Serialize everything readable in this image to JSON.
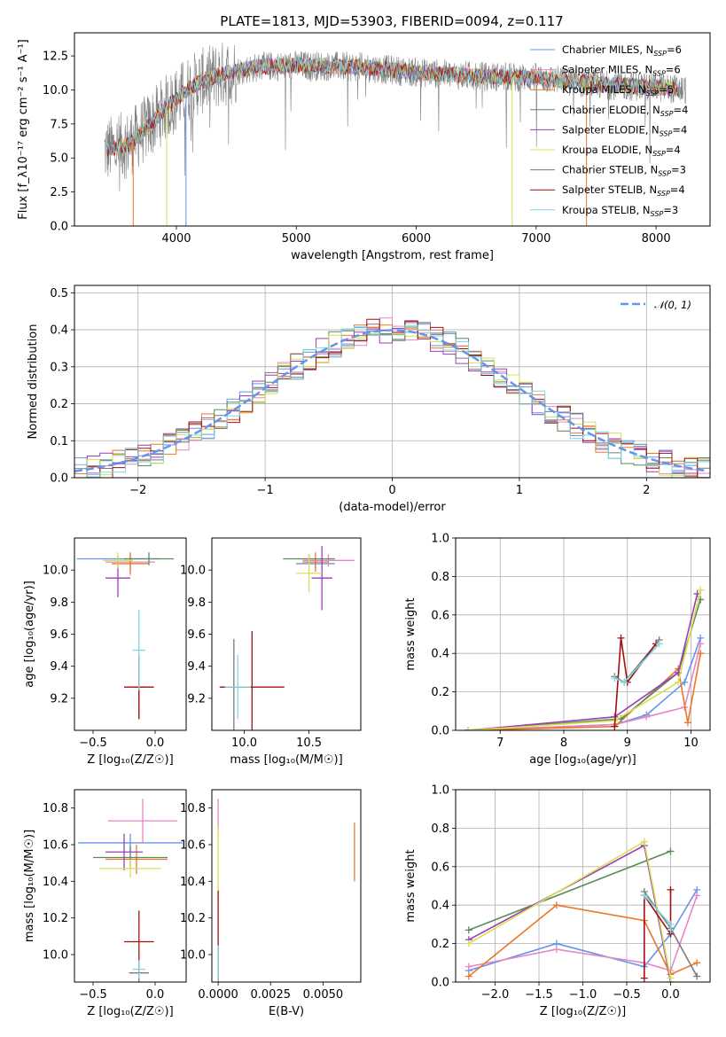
{
  "colors": {
    "chabrier_miles": "#6495ed",
    "salpeter_miles": "#e687c4",
    "kroupa_miles": "#e8782a",
    "chabrier_elodie": "#5a8a5a",
    "salpeter_elodie": "#9b3fb5",
    "kroupa_elodie": "#d8e050",
    "chabrier_stelib": "#7a7a7a",
    "salpeter_stelib": "#a01010",
    "kroupa_stelib": "#7fd6e0"
  },
  "chart_data": [
    {
      "id": "spectrum",
      "type": "line",
      "title": "PLATE=1813, MJD=53903, FIBERID=0094, z=0.117",
      "xlabel": "wavelength [Angstrom, rest frame]",
      "ylabel": "Flux [f_λ10⁻¹⁷ erg cm⁻² s⁻¹ A⁻¹]",
      "xlim": [
        3150,
        8450
      ],
      "ylim": [
        0,
        14.2
      ],
      "xticks": [
        "4000",
        "5000",
        "6000",
        "7000",
        "8000"
      ],
      "yticks": [
        "0.0",
        "2.5",
        "5.0",
        "7.5",
        "10.0",
        "12.5"
      ],
      "grid": false,
      "legend_position": "top-right",
      "legend": [
        "Chabrier MILES, N_SSP=6",
        "Salpeter MILES, N_SSP=6",
        "Kroupa MILES, N_SSP=5",
        "Chabrier ELODIE, N_SSP=4",
        "Salpeter ELODIE, N_SSP=4",
        "Kroupa ELODIE, N_SSP=4",
        "Chabrier STELIB, N_SSP=3",
        "Salpeter STELIB, N_SSP=4",
        "Kroupa STELIB, N_SSP=3"
      ],
      "series_wavelength": [
        3400,
        3500,
        3600,
        3700,
        3800,
        3900,
        4000,
        4100,
        4200,
        4300,
        4400,
        4500,
        4700,
        5000,
        5500,
        6000,
        6500,
        7000,
        7500,
        8000,
        8250
      ],
      "series_flux": [
        5.5,
        5.8,
        6.0,
        6.8,
        7.6,
        8.6,
        9.3,
        10.1,
        10.6,
        10.9,
        11.2,
        11.4,
        11.7,
        11.8,
        11.7,
        11.3,
        11.0,
        10.9,
        10.4,
        10.2,
        10.0
      ]
    },
    {
      "id": "residuals",
      "type": "area",
      "xlabel": "(data-model)/error",
      "ylabel": "Normed distribution",
      "xlim": [
        -2.5,
        2.5
      ],
      "ylim": [
        0,
        0.52
      ],
      "xticks": [
        "−2",
        "−1",
        "0",
        "1",
        "2"
      ],
      "yticks": [
        "0.0",
        "0.1",
        "0.2",
        "0.3",
        "0.4",
        "0.5"
      ],
      "grid": true,
      "legend_position": "top-right",
      "legend": [
        "𝒩(0, 1)"
      ],
      "bin_width": 0.1
    },
    {
      "id": "age_vs_Z",
      "type": "scatter",
      "xlabel": "Z [log₁₀(Z/Z☉)]",
      "ylabel": "age  [log₁₀(age/yr)]",
      "xlim": [
        -0.65,
        0.25
      ],
      "ylim": [
        9.0,
        10.2
      ],
      "xticks": [
        "−0.5",
        "0.0"
      ],
      "yticks": [
        "9.2",
        "9.4",
        "9.6",
        "9.8",
        "10.0"
      ],
      "points": [
        {
          "s": "chabrier_miles",
          "x": -0.3,
          "y": 10.07,
          "xerr": 0.33,
          "yerr": 0.02
        },
        {
          "s": "salpeter_miles",
          "x": -0.2,
          "y": 10.05,
          "xerr": 0.2,
          "yerr": 0.05
        },
        {
          "s": "kroupa_miles",
          "x": -0.2,
          "y": 10.04,
          "xerr": 0.15,
          "yerr": 0.07
        },
        {
          "s": "chabrier_elodie",
          "x": -0.05,
          "y": 10.07,
          "xerr": 0.2,
          "yerr": 0.04
        },
        {
          "s": "salpeter_elodie",
          "x": -0.3,
          "y": 9.95,
          "xerr": 0.1,
          "yerr": 0.12
        },
        {
          "s": "kroupa_elodie",
          "x": -0.3,
          "y": 10.06,
          "xerr": 0.12,
          "yerr": 0.05
        },
        {
          "s": "chabrier_stelib",
          "x": -0.13,
          "y": 9.27,
          "xerr": 0.05,
          "yerr": 0.2
        },
        {
          "s": "salpeter_stelib",
          "x": -0.13,
          "y": 9.27,
          "xerr": 0.12,
          "yerr": 0.2
        },
        {
          "s": "kroupa_stelib",
          "x": -0.13,
          "y": 9.5,
          "xerr": 0.05,
          "yerr": 0.25
        }
      ]
    },
    {
      "id": "age_vs_mass",
      "type": "scatter",
      "xlabel": "mass [log₁₀(M/M☉)]",
      "ylabel": "",
      "xlim": [
        9.75,
        10.9
      ],
      "ylim": [
        9.0,
        10.2
      ],
      "xticks": [
        "10.0",
        "10.5"
      ],
      "yticks": [
        "9.2",
        "9.4",
        "9.6",
        "9.8",
        "10.0"
      ],
      "points": [
        {
          "s": "chabrier_miles",
          "x": 10.55,
          "y": 10.04,
          "xerr": 0.15,
          "yerr": 0.03
        },
        {
          "s": "salpeter_miles",
          "x": 10.65,
          "y": 10.06,
          "xerr": 0.2,
          "yerr": 0.04
        },
        {
          "s": "kroupa_miles",
          "x": 10.55,
          "y": 10.05,
          "xerr": 0.1,
          "yerr": 0.06
        },
        {
          "s": "chabrier_elodie",
          "x": 10.5,
          "y": 10.07,
          "xerr": 0.2,
          "yerr": 0.03
        },
        {
          "s": "salpeter_elodie",
          "x": 10.6,
          "y": 9.95,
          "xerr": 0.08,
          "yerr": 0.2
        },
        {
          "s": "kroupa_elodie",
          "x": 10.5,
          "y": 9.98,
          "xerr": 0.1,
          "yerr": 0.12
        },
        {
          "s": "chabrier_stelib",
          "x": 9.92,
          "y": 9.27,
          "xerr": 0.1,
          "yerr": 0.3
        },
        {
          "s": "salpeter_stelib",
          "x": 10.06,
          "y": 9.27,
          "xerr": 0.25,
          "yerr": 0.35
        },
        {
          "s": "kroupa_stelib",
          "x": 9.95,
          "y": 9.27,
          "xerr": 0.1,
          "yerr": 0.2
        }
      ]
    },
    {
      "id": "massweight_vs_age",
      "type": "line",
      "xlabel": "age  [log₁₀(age/yr)]",
      "ylabel": "mass weight",
      "xlim": [
        6.3,
        10.3
      ],
      "ylim": [
        0,
        1
      ],
      "xticks": [
        "7",
        "8",
        "9",
        "10"
      ],
      "yticks": [
        "0.0",
        "0.2",
        "0.4",
        "0.6",
        "0.8",
        "1.0"
      ],
      "grid": true,
      "series": [
        {
          "s": "chabrier_miles",
          "x": [
            6.5,
            8.8,
            9.3,
            9.9,
            10.15
          ],
          "y": [
            0.0,
            0.03,
            0.08,
            0.25,
            0.48
          ]
        },
        {
          "s": "salpeter_miles",
          "x": [
            6.5,
            8.8,
            9.3,
            9.9,
            10.15
          ],
          "y": [
            0.0,
            0.03,
            0.07,
            0.12,
            0.45
          ]
        },
        {
          "s": "kroupa_miles",
          "x": [
            6.5,
            8.8,
            9.8,
            9.95,
            10.15
          ],
          "y": [
            0.0,
            0.02,
            0.32,
            0.04,
            0.4
          ]
        },
        {
          "s": "chabrier_elodie",
          "x": [
            6.5,
            8.9,
            9.8,
            10.15
          ],
          "y": [
            0.0,
            0.06,
            0.3,
            0.68
          ]
        },
        {
          "s": "salpeter_elodie",
          "x": [
            6.5,
            8.8,
            9.8,
            10.1
          ],
          "y": [
            0.0,
            0.07,
            0.3,
            0.71
          ]
        },
        {
          "s": "kroupa_elodie",
          "x": [
            6.5,
            8.8,
            9.8,
            10.15
          ],
          "y": [
            0.0,
            0.05,
            0.25,
            0.73
          ]
        },
        {
          "s": "chabrier_stelib",
          "x": [
            8.8,
            8.95,
            9.5
          ],
          "y": [
            0.28,
            0.25,
            0.47
          ]
        },
        {
          "s": "salpeter_stelib",
          "x": [
            8.8,
            8.9,
            9.0,
            9.45
          ],
          "y": [
            0.02,
            0.48,
            0.25,
            0.45
          ]
        },
        {
          "s": "kroupa_stelib",
          "x": [
            8.8,
            8.95,
            9.5
          ],
          "y": [
            0.27,
            0.25,
            0.45
          ]
        }
      ]
    },
    {
      "id": "mass_vs_Z",
      "type": "scatter",
      "xlabel": "Z [log₁₀(Z/Z☉)]",
      "ylabel": "mass [log₁₀(M/M☉)]",
      "xlim": [
        -0.65,
        0.25
      ],
      "ylim": [
        9.85,
        10.9
      ],
      "xticks": [
        "−0.5",
        "0.0"
      ],
      "yticks": [
        "10.0",
        "10.2",
        "10.4",
        "10.6",
        "10.8"
      ],
      "points": [
        {
          "s": "chabrier_miles",
          "x": -0.2,
          "y": 10.61,
          "xerr": 0.42,
          "yerr": 0.05
        },
        {
          "s": "salpeter_miles",
          "x": -0.1,
          "y": 10.73,
          "xerr": 0.28,
          "yerr": 0.12
        },
        {
          "s": "kroupa_miles",
          "x": -0.15,
          "y": 10.52,
          "xerr": 0.25,
          "yerr": 0.08
        },
        {
          "s": "chabrier_elodie",
          "x": -0.2,
          "y": 10.53,
          "xerr": 0.3,
          "yerr": 0.06
        },
        {
          "s": "salpeter_elodie",
          "x": -0.25,
          "y": 10.56,
          "xerr": 0.15,
          "yerr": 0.1
        },
        {
          "s": "kroupa_elodie",
          "x": -0.2,
          "y": 10.47,
          "xerr": 0.25,
          "yerr": 0.05
        },
        {
          "s": "chabrier_stelib",
          "x": -0.13,
          "y": 9.9,
          "xerr": 0.08,
          "yerr": 0.05
        },
        {
          "s": "salpeter_stelib",
          "x": -0.13,
          "y": 10.07,
          "xerr": 0.12,
          "yerr": 0.17
        },
        {
          "s": "kroupa_stelib",
          "x": -0.13,
          "y": 9.92,
          "xerr": 0.05,
          "yerr": 0.05
        }
      ]
    },
    {
      "id": "mass_vs_ebv",
      "type": "scatter",
      "xlabel": "E(B-V)",
      "ylabel": "",
      "xlim": [
        -0.0003,
        0.0068
      ],
      "ylim": [
        9.85,
        10.9
      ],
      "xticks": [
        "0.0000",
        "0.0025",
        "0.0050"
      ],
      "yticks": [
        "10.0",
        "10.2",
        "10.4",
        "10.6",
        "10.8"
      ],
      "points": [
        {
          "s": "salpeter_miles",
          "x": 0.0,
          "y": 10.75,
          "yerr": 0.1
        },
        {
          "s": "kroupa_miles",
          "x": 0.0065,
          "y": 10.56,
          "yerr": 0.16
        },
        {
          "s": "kroupa_elodie",
          "x": 0.0,
          "y": 10.5,
          "yerr": 0.2
        },
        {
          "s": "salpeter_stelib",
          "x": 0.0,
          "y": 10.1,
          "yerr": 0.25
        },
        {
          "s": "kroupa_stelib",
          "x": 0.0,
          "y": 9.95,
          "yerr": 0.1
        }
      ]
    },
    {
      "id": "massweight_vs_Z",
      "type": "line",
      "xlabel": "Z [log₁₀(Z/Z☉)]",
      "ylabel": "mass weight",
      "xlim": [
        -2.45,
        0.45
      ],
      "ylim": [
        0,
        1
      ],
      "xticks": [
        "−2.0",
        "−1.5",
        "−1.0",
        "−0.5",
        "0.0"
      ],
      "yticks": [
        "0.0",
        "0.2",
        "0.4",
        "0.6",
        "0.8",
        "1.0"
      ],
      "grid": true,
      "series": [
        {
          "s": "chabrier_miles",
          "x": [
            -2.3,
            -1.3,
            -0.3,
            0.0,
            0.3
          ],
          "y": [
            0.06,
            0.2,
            0.08,
            0.25,
            0.48
          ]
        },
        {
          "s": "salpeter_miles",
          "x": [
            -2.3,
            -1.3,
            -0.3,
            0.0,
            0.3
          ],
          "y": [
            0.08,
            0.17,
            0.1,
            0.06,
            0.45
          ]
        },
        {
          "s": "kroupa_miles",
          "x": [
            -2.3,
            -1.3,
            -0.3,
            0.0,
            0.3
          ],
          "y": [
            0.03,
            0.4,
            0.32,
            0.04,
            0.1
          ]
        },
        {
          "s": "chabrier_elodie",
          "x": [
            -2.3,
            0.0
          ],
          "y": [
            0.27,
            0.68
          ]
        },
        {
          "s": "salpeter_elodie",
          "x": [
            -2.3,
            -0.3,
            0.0
          ],
          "y": [
            0.22,
            0.71,
            0.0
          ]
        },
        {
          "s": "kroupa_elodie",
          "x": [
            -2.3,
            -0.3,
            0.0
          ],
          "y": [
            0.2,
            0.73,
            0.02
          ]
        },
        {
          "s": "chabrier_stelib",
          "x": [
            -0.3,
            0.0,
            0.3
          ],
          "y": [
            0.47,
            0.28,
            0.03
          ]
        },
        {
          "s": "salpeter_stelib",
          "x": [
            -0.3,
            -0.3,
            0.0,
            0.0
          ],
          "y": [
            0.02,
            0.45,
            0.25,
            0.48
          ]
        },
        {
          "s": "kroupa_stelib",
          "x": [
            -0.3,
            0.0,
            0.0
          ],
          "y": [
            0.45,
            0.3,
            0.27
          ]
        }
      ]
    }
  ]
}
